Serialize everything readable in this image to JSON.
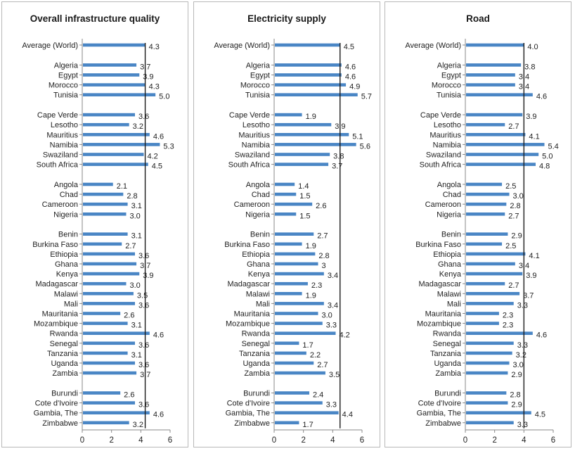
{
  "chart_data": [
    {
      "type": "bar",
      "orientation": "horizontal",
      "title": "Overall infrastructure quality",
      "xlim": [
        0,
        6
      ],
      "xticks": [
        "0",
        "2",
        "4",
        "6"
      ],
      "bar_color": "#4a86c5",
      "reference_line": "average",
      "grid": false,
      "categories": [
        "Average (World)",
        "Algeria",
        "Egypt",
        "Morocco",
        "Tunisia",
        "Cape Verde",
        "Lesotho",
        "Mauritius",
        "Namibia",
        "Swaziland",
        "South Africa",
        "Angola",
        "Chad",
        "Cameroon",
        "Nigeria",
        "Benin",
        "Burkina Faso",
        "Ethiopia",
        "Ghana",
        "Kenya",
        "Madagascar",
        "Malawi",
        "Mali",
        "Mauritania",
        "Mozambique",
        "Rwanda",
        "Senegal",
        "Tanzania",
        "Uganda",
        "Zambia",
        "Burundi",
        "Cote d'Ivoire",
        "Gambia, The",
        "Zimbabwe"
      ],
      "values": [
        4.3,
        3.7,
        3.9,
        4.3,
        5.0,
        3.6,
        3.2,
        4.6,
        5.3,
        4.2,
        4.5,
        2.1,
        2.8,
        3.1,
        3.0,
        3.1,
        2.7,
        3.6,
        3.7,
        3.9,
        3.0,
        3.5,
        3.6,
        2.6,
        3.1,
        4.6,
        3.6,
        3.1,
        3.6,
        3.7,
        2.6,
        3.6,
        4.6,
        3.2
      ],
      "value_labels": [
        "4.3",
        "3.7",
        "3.9",
        "4.3",
        "5.0",
        "3.6",
        "3.2",
        "4.6",
        "5.3",
        "4.2",
        "4.5",
        "2.1",
        "2.8",
        "3.1",
        "3.0",
        "3.1",
        "2.7",
        "3.6",
        "3.7",
        "3.9",
        "3.0",
        "3.5",
        "3.6",
        "2.6",
        "3.1",
        "4.6",
        "3.6",
        "3.1",
        "3.6",
        "3.7",
        "2.6",
        "3.6",
        "4.6",
        "3.2"
      ]
    },
    {
      "type": "bar",
      "orientation": "horizontal",
      "title": "Electricity supply",
      "xlim": [
        0,
        6
      ],
      "xticks": [
        "0",
        "2",
        "4",
        "6"
      ],
      "bar_color": "#4a86c5",
      "reference_line": "average",
      "grid": false,
      "categories": [
        "Average (World)",
        "Algeria",
        "Egypt",
        "Morocco",
        "Tunisia",
        "Cape Verde",
        "Lesotho",
        "Mauritius",
        "Namibia",
        "Swaziland",
        "South Africa",
        "Angola",
        "Chad",
        "Cameroon",
        "Nigeria",
        "Benin",
        "Burkina Faso",
        "Ethiopia",
        "Ghana",
        "Kenya",
        "Madagascar",
        "Malawi",
        "Mali",
        "Mauritania",
        "Mozambique",
        "Rwanda",
        "Senegal",
        "Tanzania",
        "Uganda",
        "Zambia",
        "Burundi",
        "Cote d'Ivoire",
        "Gambia, The",
        "Zimbabwe"
      ],
      "values": [
        4.5,
        4.6,
        4.6,
        4.9,
        5.7,
        1.9,
        3.9,
        5.1,
        5.6,
        3.8,
        3.7,
        1.4,
        1.5,
        2.6,
        1.5,
        2.7,
        1.9,
        2.8,
        3.0,
        3.4,
        2.3,
        1.9,
        3.4,
        3.0,
        3.3,
        4.2,
        1.7,
        2.2,
        2.7,
        3.5,
        2.4,
        3.3,
        4.4,
        1.7
      ],
      "value_labels": [
        "4.5",
        "4.6",
        "4.6",
        "4.9",
        "5.7",
        "1.9",
        "3.9",
        "5.1",
        "5.6",
        "3.8",
        "3.7",
        "1.4",
        "1.5",
        "2.6",
        "1.5",
        "2.7",
        "1.9",
        "2.8",
        "3",
        "3.4",
        "2.3",
        "1.9",
        "3.4",
        "3.0",
        "3.3",
        "4.2",
        "1.7",
        "2.2",
        "2.7",
        "3.5",
        "2.4",
        "3.3",
        "4.4",
        "1.7"
      ]
    },
    {
      "type": "bar",
      "orientation": "horizontal",
      "title": "Road",
      "xlim": [
        0,
        6
      ],
      "xticks": [
        "0",
        "2",
        "4",
        "6"
      ],
      "bar_color": "#4a86c5",
      "reference_line": "average",
      "grid": false,
      "categories": [
        "Average (World)",
        "Algeria",
        "Egypt",
        "Morocco",
        "Tunisia",
        "Cape Verde",
        "Lesotho",
        "Mauritius",
        "Namibia",
        "Swaziland",
        "South Africa",
        "Angola",
        "Chad",
        "Cameroon",
        "Nigeria",
        "Benin",
        "Burkina Faso",
        "Ethiopia",
        "Ghana",
        "Kenya",
        "Madagascar",
        "Malawi",
        "Mali",
        "Mauritania",
        "Mozambique",
        "Rwanda",
        "Senegal",
        "Tanzania",
        "Uganda",
        "Zambia",
        "Burundi",
        "Cote d'Ivoire",
        "Gambia, The",
        "Zimbabwe"
      ],
      "values": [
        4.0,
        3.8,
        3.4,
        3.4,
        4.6,
        3.9,
        2.7,
        4.1,
        5.4,
        5.0,
        4.8,
        2.5,
        3.0,
        2.8,
        2.7,
        2.9,
        2.5,
        4.1,
        3.4,
        3.9,
        2.7,
        3.7,
        3.3,
        2.3,
        2.3,
        4.6,
        3.3,
        3.2,
        3.0,
        2.9,
        2.8,
        2.9,
        4.5,
        3.3
      ],
      "value_labels": [
        "4.0",
        "3.8",
        "3.4",
        "3.4",
        "4.6",
        "3.9",
        "2.7",
        "4.1",
        "5.4",
        "5.0",
        "4.8",
        "2.5",
        "3.0",
        "2.8",
        "2.7",
        "2.9",
        "2.5",
        "4.1",
        "3.4",
        "3.9",
        "2.7",
        "3.7",
        "3.3",
        "2.3",
        "2.3",
        "4.6",
        "3.3",
        "3.2",
        "3.0",
        "2.9",
        "2.8",
        "2.9",
        "4.5",
        "3.3"
      ]
    }
  ]
}
